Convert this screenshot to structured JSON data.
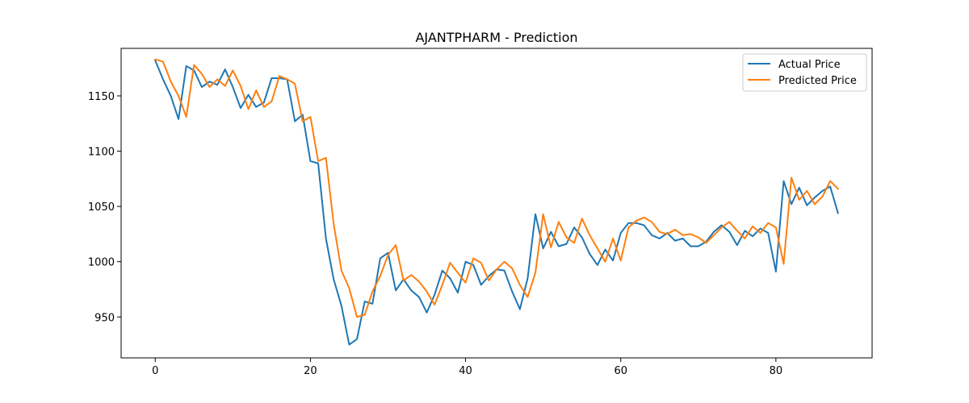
{
  "chart_data": {
    "type": "line",
    "title": "AJANTPHARM - Prediction",
    "xlabel": "",
    "ylabel": "",
    "xlim": [
      -4.4,
      92.4
    ],
    "ylim": [
      913,
      1193
    ],
    "x_ticks": [
      0,
      20,
      40,
      60,
      80
    ],
    "y_ticks": [
      950,
      1000,
      1050,
      1100,
      1150
    ],
    "legend_position": "upper right",
    "grid": false,
    "series": [
      {
        "name": "Actual Price",
        "color": "#1f77b4",
        "values": [
          1182,
          1165,
          1150,
          1129,
          1177,
          1173,
          1158,
          1163,
          1160,
          1174,
          1158,
          1139,
          1151,
          1140,
          1144,
          1166,
          1166,
          1165,
          1127,
          1133,
          1091,
          1089,
          1021,
          984,
          960,
          925,
          930,
          964,
          962,
          1003,
          1008,
          974,
          984,
          974,
          968,
          954,
          970,
          992,
          985,
          972,
          1000,
          997,
          979,
          987,
          993,
          992,
          973,
          957,
          985,
          1043,
          1012,
          1027,
          1014,
          1016,
          1031,
          1022,
          1007,
          997,
          1011,
          1001,
          1026,
          1035,
          1035,
          1033,
          1024,
          1021,
          1026,
          1019,
          1021,
          1014,
          1014,
          1018,
          1027,
          1033,
          1027,
          1015,
          1028,
          1023,
          1030,
          1026,
          991,
          1073,
          1052,
          1067,
          1051,
          1058,
          1064,
          1068,
          1044
        ]
      },
      {
        "name": "Predicted Price",
        "color": "#ff7f0e",
        "values": [
          1183,
          1181,
          1163,
          1150,
          1131,
          1178,
          1170,
          1158,
          1165,
          1159,
          1173,
          1159,
          1138,
          1155,
          1140,
          1145,
          1168,
          1165,
          1161,
          1127,
          1131,
          1091,
          1094,
          1034,
          992,
          976,
          950,
          952,
          973,
          987,
          1006,
          1015,
          983,
          988,
          982,
          973,
          961,
          979,
          999,
          990,
          981,
          1003,
          999,
          983,
          993,
          1000,
          994,
          979,
          968,
          990,
          1043,
          1013,
          1036,
          1022,
          1017,
          1039,
          1024,
          1012,
          1000,
          1021,
          1001,
          1031,
          1037,
          1040,
          1036,
          1027,
          1025,
          1029,
          1024,
          1025,
          1022,
          1017,
          1024,
          1031,
          1036,
          1028,
          1021,
          1032,
          1026,
          1035,
          1031,
          998,
          1076,
          1056,
          1064,
          1052,
          1059,
          1073,
          1066
        ]
      }
    ]
  }
}
